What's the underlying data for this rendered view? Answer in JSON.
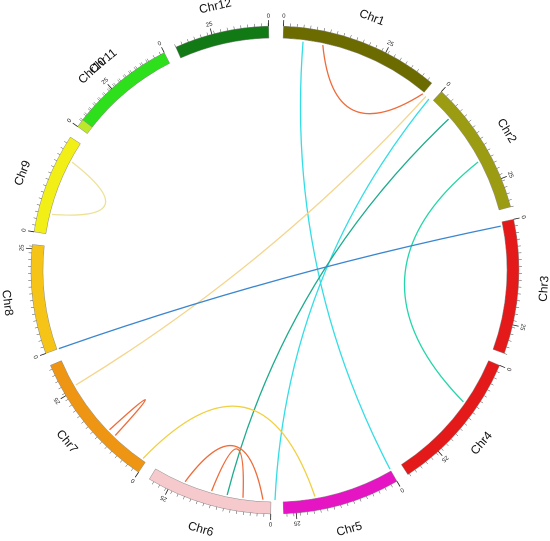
{
  "chart_data": {
    "type": "circos",
    "chromosomes": [
      {
        "name": "Chr1",
        "color": "#6b6b00",
        "start_deg": 2,
        "end_deg": 40,
        "ticks": [
          {
            "label": "0",
            "deg": 2
          },
          {
            "label": "25",
            "deg": 27
          }
        ]
      },
      {
        "name": "Chr2",
        "color": "#9c9c12",
        "start_deg": 43,
        "end_deg": 75,
        "ticks": [
          {
            "label": "0",
            "deg": 43
          },
          {
            "label": "25",
            "deg": 68
          }
        ]
      },
      {
        "name": "Chr3",
        "color": "#e41a1a",
        "start_deg": 78,
        "end_deg": 110,
        "ticks": [
          {
            "label": "0",
            "deg": 78
          },
          {
            "label": "25",
            "deg": 103
          }
        ]
      },
      {
        "name": "Chr4",
        "color": "#e41a1a",
        "start_deg": 113,
        "end_deg": 147,
        "ticks": [
          {
            "label": "0",
            "deg": 113
          },
          {
            "label": "25",
            "deg": 138
          }
        ]
      },
      {
        "name": "Chr5",
        "color": "#e615c4",
        "start_deg": 150,
        "end_deg": 178,
        "ticks": [
          {
            "label": "0",
            "deg": 150
          },
          {
            "label": "25",
            "deg": 175
          }
        ]
      },
      {
        "name": "Chr6",
        "color": "#f6c9cd",
        "start_deg": 181,
        "end_deg": 211,
        "ticks": [
          {
            "label": "0",
            "deg": 181
          },
          {
            "label": "25",
            "deg": 206
          }
        ]
      },
      {
        "name": "Chr7",
        "color": "#ee9514",
        "start_deg": 214,
        "end_deg": 247,
        "ticks": [
          {
            "label": "0",
            "deg": 214
          },
          {
            "label": "25",
            "deg": 239
          }
        ]
      },
      {
        "name": "Chr8",
        "color": "#f5c417",
        "start_deg": 250,
        "end_deg": 276,
        "ticks": [
          {
            "label": "0",
            "deg": 250
          },
          {
            "label": "25",
            "deg": 275
          }
        ]
      },
      {
        "name": "Chr9",
        "color": "#f2ef16",
        "start_deg": 279,
        "end_deg": 303,
        "ticks": [
          {
            "label": "0",
            "deg": 279
          }
        ]
      },
      {
        "name": "Chr10",
        "color": "#bde82a",
        "start_deg": 306,
        "end_deg": 329,
        "ticks": [
          {
            "label": "0",
            "deg": 306
          }
        ]
      },
      {
        "name": "Chr11",
        "color": "#2ee01c",
        "start_deg": 332,
        "end_deg": 358.5,
        "ticks": [
          {
            "label": "0",
            "deg": 332
          },
          {
            "label": "25",
            "deg": 355
          }
        ]
      },
      {
        "name": "Chr12",
        "color": "#127a14",
        "start_deg": 360.5,
        "end_deg": 359.5,
        "ticks": [
          {
            "label": "0",
            "deg": 360.5
          },
          {
            "label": "25",
            "deg": 382
          }
        ]
      }
    ],
    "links": [
      {
        "from_deg": 7,
        "to_deg": 150,
        "color": "#33dde5",
        "from_label": "",
        "to_label": ""
      },
      {
        "from_deg": 40,
        "to_deg": 12,
        "color": "#ee6b3a",
        "from_label": "",
        "to_label": ""
      },
      {
        "from_deg": 41,
        "to_deg": 240,
        "color": "#f4d58c",
        "from_label": "",
        "to_label": ""
      },
      {
        "from_deg": 42,
        "to_deg": 180,
        "color": "#33dde5",
        "from_label": "",
        "to_label": ""
      },
      {
        "from_deg": 49,
        "to_deg": 192,
        "color": "#1cab8c",
        "from_label": "",
        "to_label": ""
      },
      {
        "from_deg": 62,
        "to_deg": 125,
        "color": "#22d6a8",
        "from_label": "",
        "to_label": ""
      },
      {
        "from_deg": 79,
        "to_deg": 250,
        "color": "#3a86d0",
        "from_label": "",
        "to_label": ""
      },
      {
        "from_deg": 284,
        "to_deg": 298,
        "color": "#ede197",
        "from_label": "",
        "to_label": ""
      },
      {
        "from_deg": 170,
        "to_deg": 215,
        "color": "#f0d040",
        "from_label": "",
        "to_label": ""
      },
      {
        "from_deg": 203,
        "to_deg": 183,
        "color": "#ee6b3a",
        "from_label": "",
        "to_label": ""
      },
      {
        "from_deg": 196,
        "to_deg": 188,
        "color": "#ee6b3a",
        "from_label": "",
        "to_label": ""
      },
      {
        "from_deg": 224,
        "to_deg": 226,
        "color": "#ee6b3a",
        "from_label": "",
        "to_label": ""
      }
    ]
  }
}
